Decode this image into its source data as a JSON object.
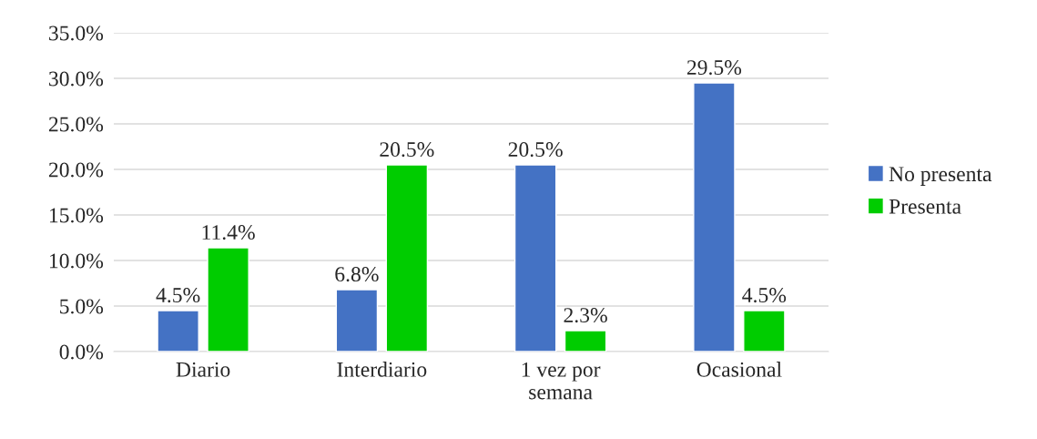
{
  "chart_data": {
    "type": "bar",
    "categories": [
      "Diario",
      "Interdiario",
      "1 vez por\nsemana",
      "Ocasional"
    ],
    "series": [
      {
        "name": "No presenta",
        "color": "#4472c4",
        "values": [
          4.5,
          6.8,
          20.5,
          29.5
        ],
        "value_labels": [
          "4.5%",
          "6.8%",
          "20.5%",
          "29.5%"
        ]
      },
      {
        "name": "Presenta",
        "color": "#00cc00",
        "values": [
          11.4,
          20.5,
          2.3,
          4.5
        ],
        "value_labels": [
          "11.4%",
          "20.5%",
          "2.3%",
          "4.5%"
        ]
      }
    ],
    "ylim": [
      0,
      35
    ],
    "yticks": [
      {
        "value": 0,
        "label": "0.0%"
      },
      {
        "value": 5,
        "label": "5.0%"
      },
      {
        "value": 10,
        "label": "10.0%"
      },
      {
        "value": 15,
        "label": "15.0%"
      },
      {
        "value": 20,
        "label": "20.0%"
      },
      {
        "value": 25,
        "label": "25.0%"
      },
      {
        "value": 30,
        "label": "30.0%"
      },
      {
        "value": 35,
        "label": "35.0%"
      }
    ],
    "grid": "y",
    "legend": "right"
  }
}
